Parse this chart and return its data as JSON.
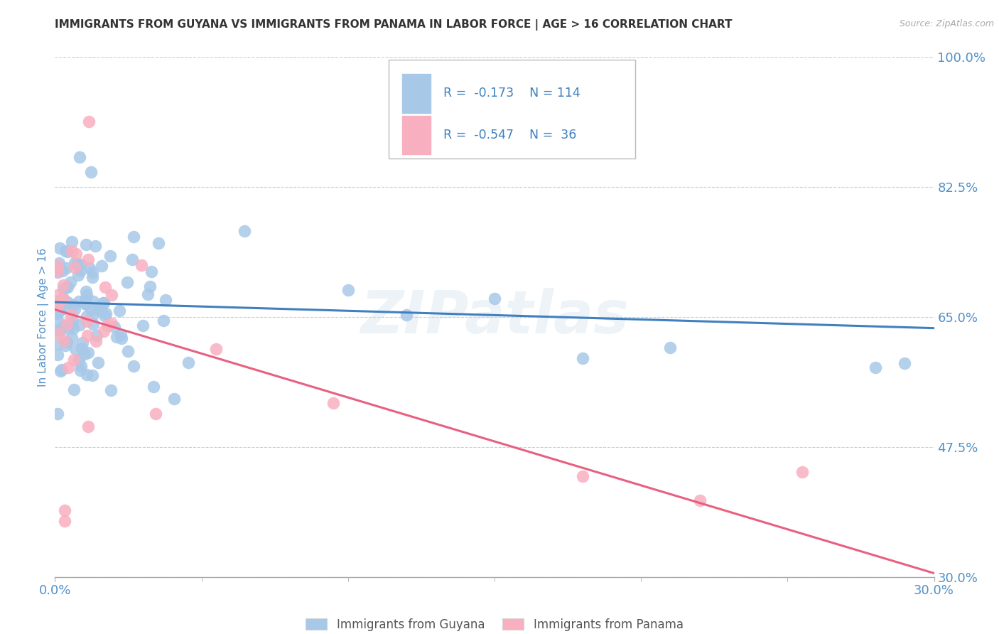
{
  "title": "IMMIGRANTS FROM GUYANA VS IMMIGRANTS FROM PANAMA IN LABOR FORCE | AGE > 16 CORRELATION CHART",
  "source": "Source: ZipAtlas.com",
  "ylabel": "In Labor Force | Age > 16",
  "xlim": [
    0.0,
    0.3
  ],
  "ylim": [
    0.3,
    1.0
  ],
  "yticks": [
    0.3,
    0.475,
    0.65,
    0.825,
    1.0
  ],
  "ytick_labels": [
    "30.0%",
    "47.5%",
    "65.0%",
    "82.5%",
    "100.0%"
  ],
  "xtick_labels": [
    "0.0%",
    "30.0%"
  ],
  "xtick_positions": [
    0.0,
    0.3
  ],
  "guyana_color": "#a8c8e8",
  "panama_color": "#f8b0c0",
  "guyana_line_color": "#4080c0",
  "panama_line_color": "#e86080",
  "watermark": "ZIPatlas",
  "legend_R_guyana": "-0.173",
  "legend_N_guyana": "114",
  "legend_R_panama": "-0.547",
  "legend_N_panama": "36",
  "guyana_trend_x0": 0.0,
  "guyana_trend_x1": 0.3,
  "guyana_trend_y0": 0.67,
  "guyana_trend_y1": 0.635,
  "panama_trend_x0": 0.0,
  "panama_trend_x1": 0.3,
  "panama_trend_y0": 0.66,
  "panama_trend_y1": 0.305
}
